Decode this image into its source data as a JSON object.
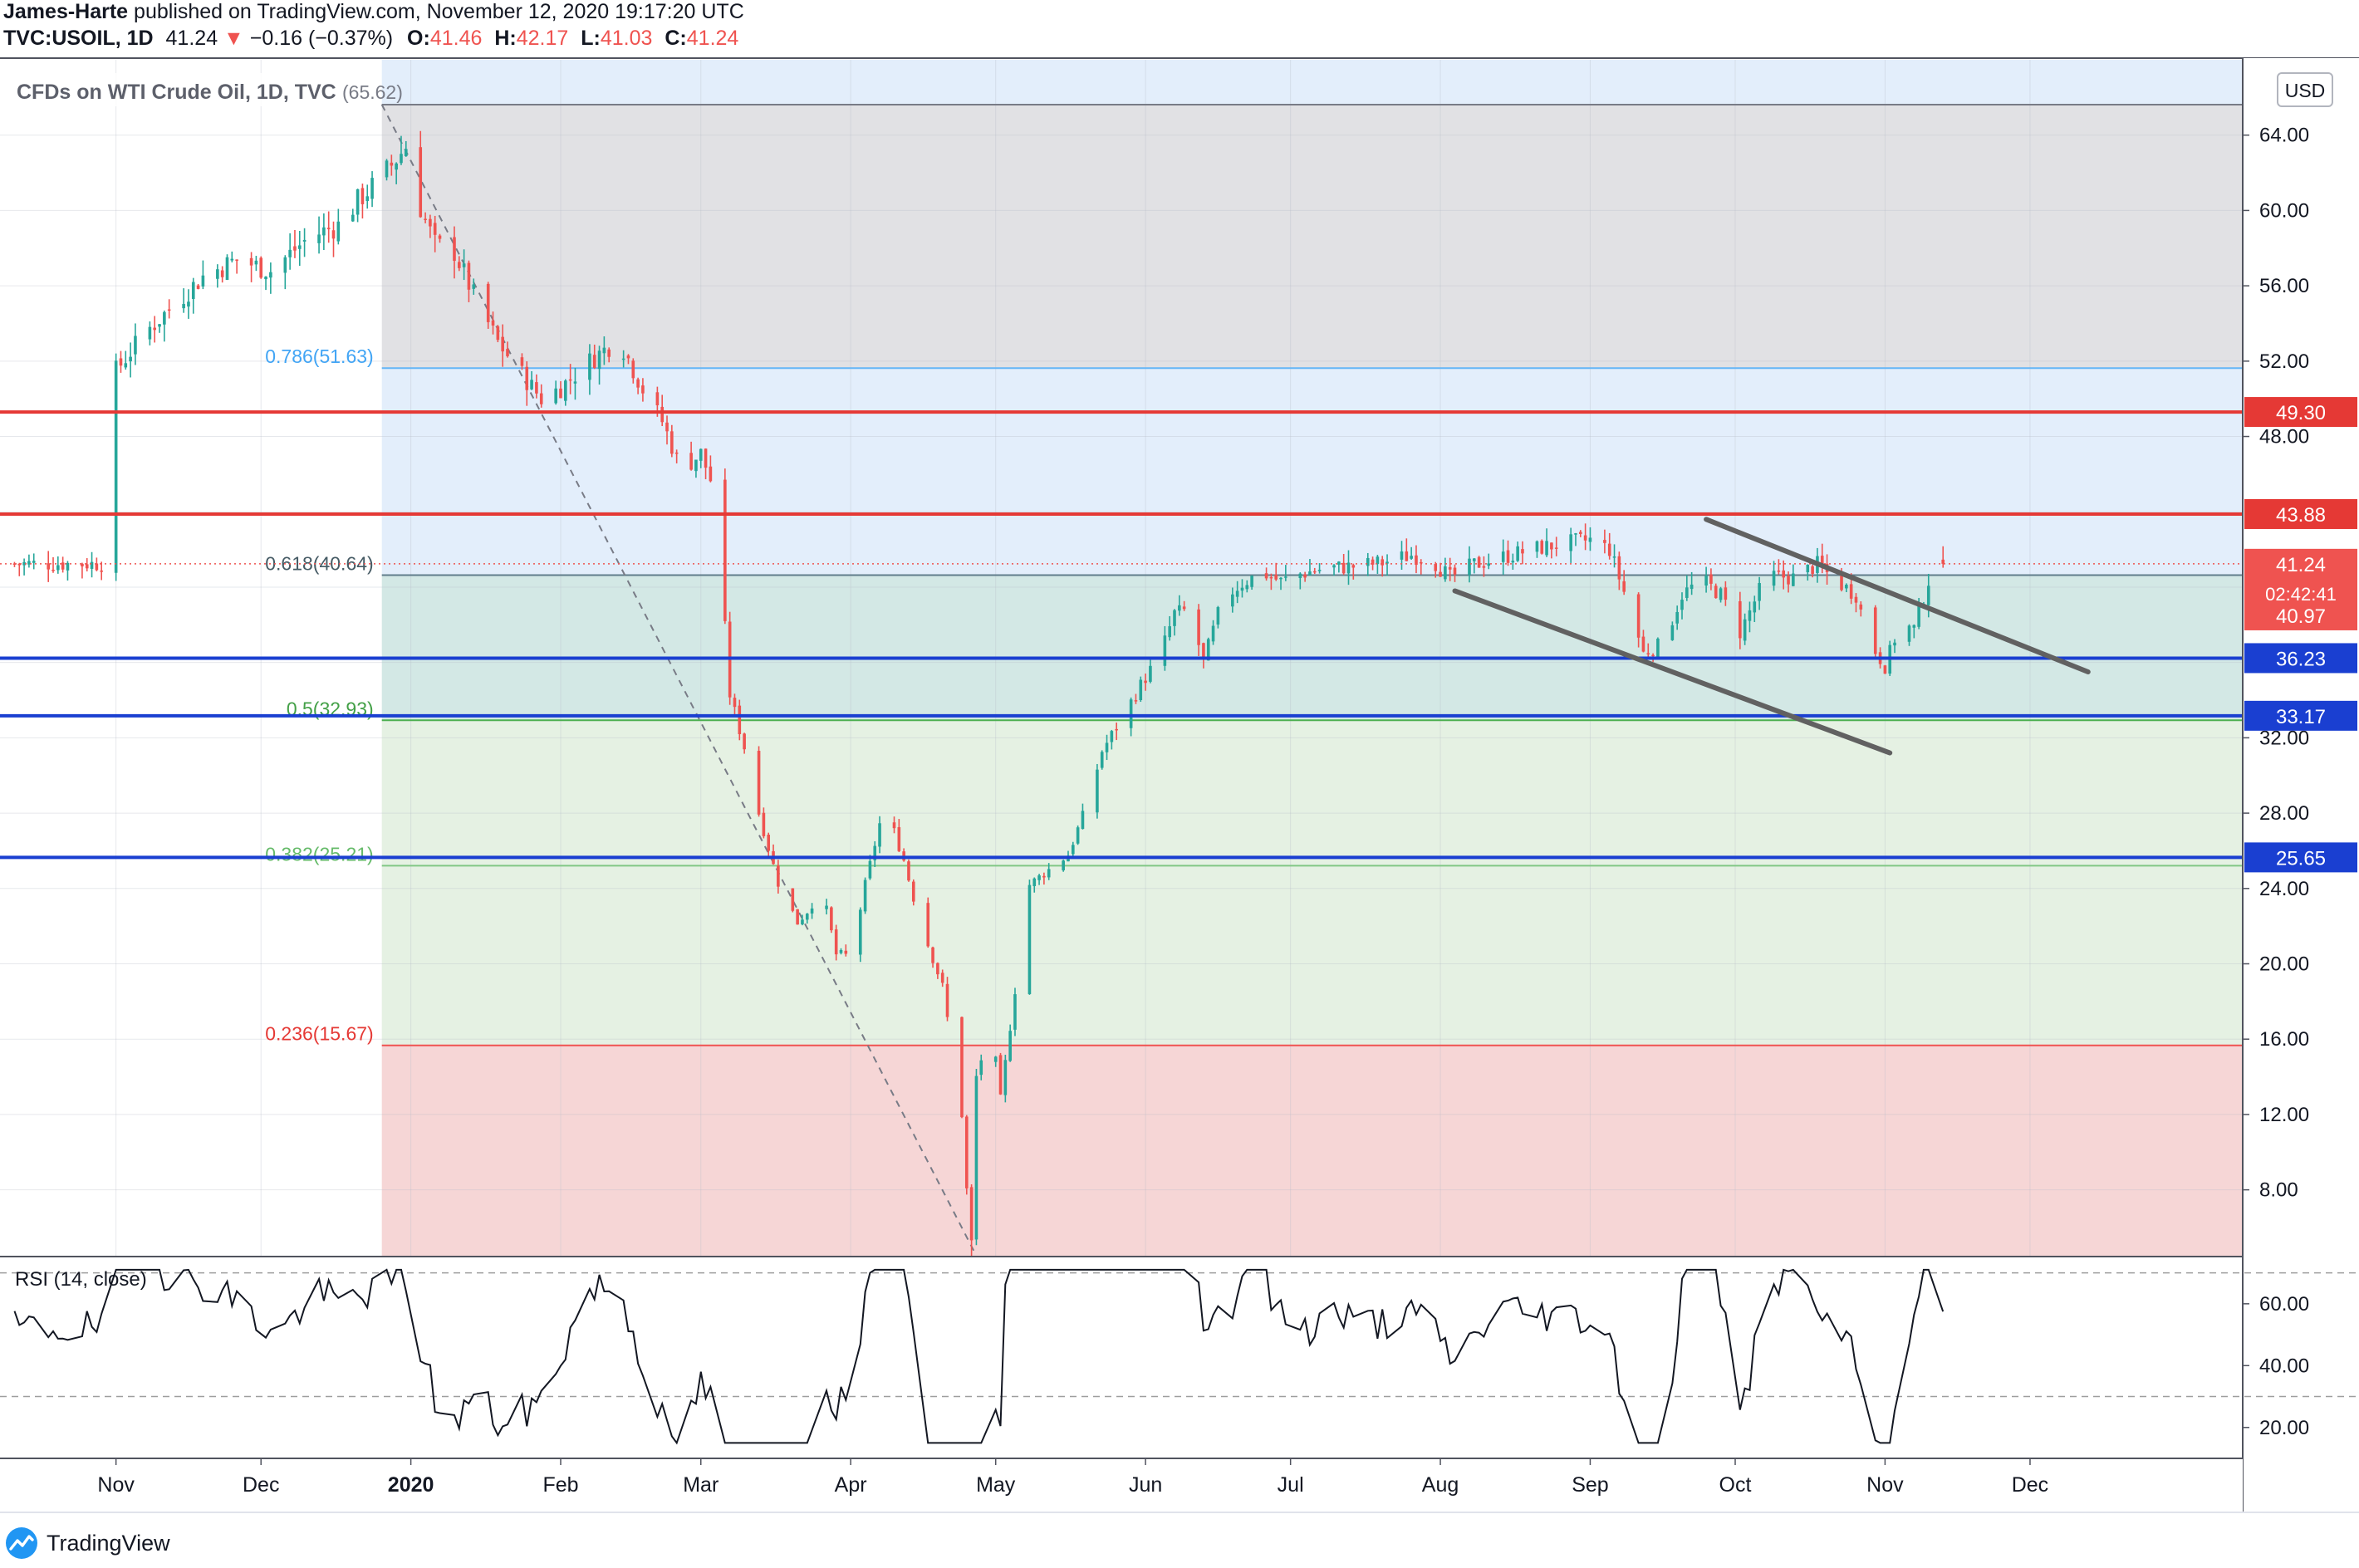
{
  "header": {
    "author": "James-Harte",
    "published_text": "published on TradingView.com, November 12, 2020 19:17:20 UTC",
    "symbol": "TVC:USOIL, 1D",
    "last": "41.24",
    "arrow": "▼",
    "change": "−0.16 (−0.37%)",
    "o_label": "O:",
    "o_val": "41.46",
    "h_label": "H:",
    "h_val": "42.17",
    "l_label": "L:",
    "l_val": "41.03",
    "c_label": "C:",
    "c_val": "41.24"
  },
  "legend": {
    "title": "CFDs on WTI Crude Oil, 1D, TVC",
    "fib_top": "(65.62)"
  },
  "currency": "USD",
  "rsi_label": "RSI (14, close)",
  "footer": {
    "brand": "TradingView"
  },
  "colors": {
    "up": "#26a69a",
    "down": "#ef5350",
    "resistance": "#e53935",
    "support": "#1a3fd1",
    "fib_grey": "#e1e1e4",
    "fib_blue": "#e3eefb",
    "fib_teal": "#d3e8e5",
    "fib_green": "#e5f1e3",
    "fib_red": "#f6d6d6"
  },
  "chart_data": {
    "type": "candlestick",
    "title": "CFDs on WTI Crude Oil, 1D, TVC",
    "y_axis": {
      "ticks": [
        8,
        12,
        16,
        20,
        24,
        28,
        32,
        36,
        40,
        44,
        48,
        52,
        56,
        60,
        64
      ],
      "labels": [
        "8.00",
        "12.00",
        "16.00",
        "20.00",
        "24.00",
        "28.00",
        "32.00",
        "",
        "",
        "",
        "48.00",
        "52.00",
        "56.00",
        "60.00",
        "64.00"
      ],
      "ylim": [
        4.5,
        68
      ],
      "unit": "USD"
    },
    "x_axis": {
      "labels": [
        "Nov",
        "Dec",
        "2020",
        "Feb",
        "Mar",
        "Apr",
        "May",
        "Jun",
        "Jul",
        "Aug",
        "Sep",
        "Oct",
        "Nov",
        "Dec"
      ],
      "tick_days": [
        0,
        30,
        61,
        92,
        121,
        152,
        182,
        213,
        243,
        274,
        305,
        335,
        366,
        396
      ],
      "xlim": [
        -24,
        440
      ]
    },
    "fib_retracement": {
      "start_day": 55,
      "levels": [
        {
          "ratio": 1,
          "price": 65.62,
          "label": "(65.62)"
        },
        {
          "ratio": 0.786,
          "price": 51.63,
          "label": "0.786(51.63)"
        },
        {
          "ratio": 0.618,
          "price": 40.64,
          "label": "0.618(40.64)"
        },
        {
          "ratio": 0.5,
          "price": 32.93,
          "label": "0.5(32.93)"
        },
        {
          "ratio": 0.382,
          "price": 25.21,
          "label": "0.382(25.21)"
        },
        {
          "ratio": 0.236,
          "price": 15.67,
          "label": "0.236(15.67)"
        }
      ],
      "trend_line": [
        [
          55,
          65.62
        ],
        [
          178,
          4.5
        ]
      ]
    },
    "horizontal_levels": [
      {
        "price": 49.3,
        "label": "49.30",
        "kind": "resistance"
      },
      {
        "price": 43.88,
        "label": "43.88",
        "kind": "resistance"
      },
      {
        "price": 36.23,
        "label": "36.23",
        "kind": "support"
      },
      {
        "price": 33.17,
        "label": "33.17",
        "kind": "support"
      },
      {
        "price": 25.65,
        "label": "25.65",
        "kind": "support"
      }
    ],
    "price_labels": [
      {
        "price": 41.24,
        "text": "41.24",
        "sub": "02:42:41"
      },
      {
        "price": 40.97,
        "text": "40.97"
      }
    ],
    "channel_lines": [
      [
        [
          329,
          43.6
        ],
        [
          408,
          35.5
        ]
      ],
      [
        [
          277,
          39.8
        ],
        [
          367,
          31.2
        ]
      ]
    ],
    "ohlc_anchors": [
      [
        0,
        51.5
      ],
      [
        6,
        53.5
      ],
      [
        12,
        55
      ],
      [
        18,
        56.5
      ],
      [
        25,
        57.4
      ],
      [
        32,
        56.8
      ],
      [
        40,
        58.6
      ],
      [
        46,
        59.2
      ],
      [
        50,
        60.5
      ],
      [
        55,
        61.8
      ],
      [
        57,
        62.4
      ],
      [
        60,
        63.4
      ],
      [
        62,
        60.8
      ],
      [
        66,
        58.2
      ],
      [
        70,
        57.8
      ],
      [
        74,
        55.5
      ],
      [
        79,
        53.0
      ],
      [
        84,
        51.3
      ],
      [
        88,
        50.0
      ],
      [
        92,
        50.6
      ],
      [
        98,
        52.0
      ],
      [
        104,
        53.2
      ],
      [
        109,
        50.5
      ],
      [
        113,
        48.8
      ],
      [
        117,
        46.2
      ],
      [
        121,
        47.1
      ],
      [
        124,
        45.0
      ],
      [
        125,
        41.3
      ],
      [
        127,
        34.3
      ],
      [
        130,
        31.5
      ],
      [
        133,
        28.0
      ],
      [
        137,
        24.3
      ],
      [
        141,
        22.2
      ],
      [
        143,
        22.8
      ],
      [
        146,
        24.0
      ],
      [
        149,
        20.5
      ],
      [
        152,
        20.4
      ],
      [
        155,
        24.2
      ],
      [
        159,
        28.5
      ],
      [
        163,
        25.5
      ],
      [
        166,
        22.5
      ],
      [
        171,
        18.8
      ],
      [
        175,
        12.0
      ],
      [
        176,
        8.0
      ],
      [
        177,
        5.2
      ],
      [
        178,
        14.0
      ],
      [
        181,
        16.8
      ],
      [
        183,
        12.8
      ],
      [
        186,
        18.6
      ],
      [
        189,
        24.2
      ],
      [
        193,
        25.0
      ],
      [
        197,
        25.8
      ],
      [
        201,
        28.5
      ],
      [
        204,
        31.3
      ],
      [
        208,
        33.0
      ],
      [
        212,
        34.8
      ],
      [
        216,
        36.4
      ],
      [
        219,
        38.6
      ],
      [
        222,
        38.8
      ],
      [
        225,
        36.0
      ],
      [
        229,
        39.4
      ],
      [
        233,
        40.2
      ],
      [
        237,
        40.8
      ],
      [
        241,
        40.3
      ],
      [
        245,
        40.7
      ],
      [
        250,
        41.0
      ],
      [
        256,
        41.1
      ],
      [
        262,
        41.3
      ],
      [
        268,
        41.7
      ],
      [
        272,
        41.5
      ],
      [
        276,
        40.5
      ],
      [
        281,
        41.2
      ],
      [
        287,
        41.6
      ],
      [
        293,
        42.0
      ],
      [
        299,
        42.3
      ],
      [
        305,
        42.5
      ],
      [
        309,
        42.0
      ],
      [
        313,
        39.0
      ],
      [
        316,
        36.5
      ],
      [
        320,
        37.0
      ],
      [
        324,
        39.6
      ],
      [
        328,
        40.4
      ],
      [
        332,
        39.6
      ],
      [
        336,
        37.6
      ],
      [
        340,
        39.8
      ],
      [
        343,
        40.6
      ],
      [
        347,
        40.5
      ],
      [
        352,
        41.2
      ],
      [
        356,
        40.3
      ],
      [
        360,
        39.6
      ],
      [
        363,
        37.0
      ],
      [
        366,
        35.8
      ],
      [
        369,
        38.0
      ],
      [
        372,
        37.8
      ],
      [
        376,
        41.2
      ],
      [
        378,
        41.24
      ]
    ]
  }
}
